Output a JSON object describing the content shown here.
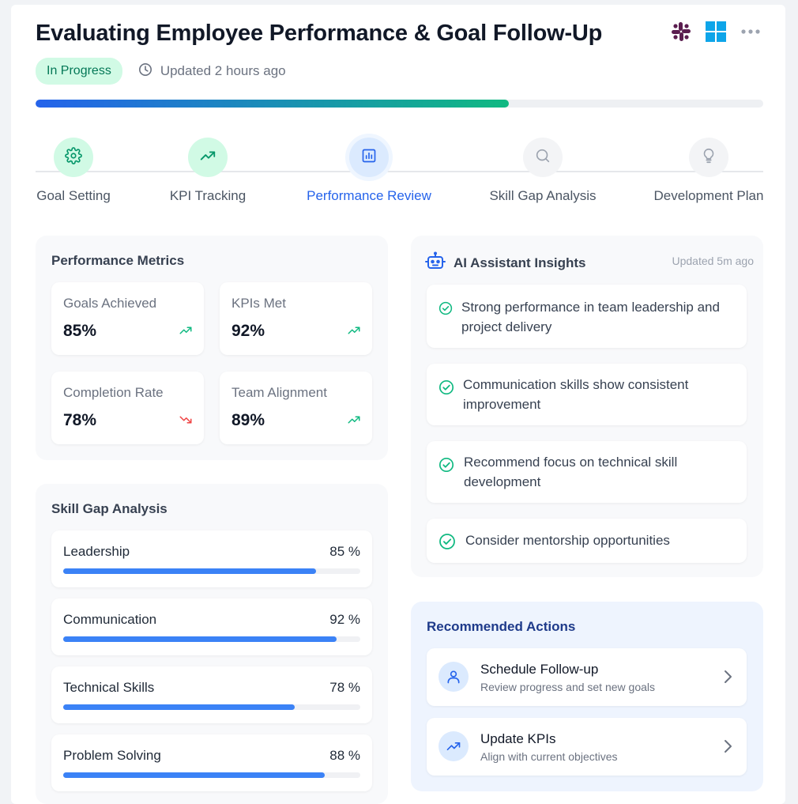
{
  "header": {
    "title": "Evaluating Employee Performance & Goal Follow-Up",
    "status_badge": "In Progress",
    "updated": "Updated 2 hours ago",
    "icons": [
      "slack-icon",
      "windows-icon",
      "more-options-icon"
    ]
  },
  "progress": {
    "fraction": 0.65,
    "colors": [
      "#2563eb",
      "#10b981"
    ]
  },
  "steps": [
    {
      "label": "Goal Setting",
      "icon": "gear-icon",
      "state": "done"
    },
    {
      "label": "KPI Tracking",
      "icon": "trending-up-icon",
      "state": "done"
    },
    {
      "label": "Performance Review",
      "icon": "bar-chart-icon",
      "state": "active"
    },
    {
      "label": "Skill Gap Analysis",
      "icon": "search-icon",
      "state": "pending"
    },
    {
      "label": "Development Plan",
      "icon": "lightbulb-icon",
      "state": "pending"
    }
  ],
  "metrics": {
    "title": "Performance Metrics",
    "items": [
      {
        "label": "Goals Achieved",
        "value": "85%",
        "trend": "up"
      },
      {
        "label": "KPIs Met",
        "value": "92%",
        "trend": "up"
      },
      {
        "label": "Completion Rate",
        "value": "78%",
        "trend": "down"
      },
      {
        "label": "Team Alignment",
        "value": "89%",
        "trend": "up"
      }
    ]
  },
  "skills": {
    "title": "Skill Gap Analysis",
    "items": [
      {
        "name": "Leadership",
        "pct_label": "85 %",
        "value": 0.85
      },
      {
        "name": "Communication",
        "pct_label": "92 %",
        "value": 0.92
      },
      {
        "name": "Technical Skills",
        "pct_label": "78 %",
        "value": 0.78
      },
      {
        "name": "Problem Solving",
        "pct_label": "88 %",
        "value": 0.88
      }
    ]
  },
  "ai": {
    "title": "AI Assistant Insights",
    "updated": "Updated 5m ago",
    "insights": [
      "Strong performance in team leadership and project delivery",
      "Communication skills show consistent improvement",
      "Recommend focus on technical skill development",
      "Consider mentorship opportunities"
    ]
  },
  "actions": {
    "title": "Recommended Actions",
    "items": [
      {
        "title": "Schedule Follow-up",
        "subtitle": "Review progress and set new goals",
        "icon": "user-icon"
      },
      {
        "title": "Update KPIs",
        "subtitle": "Align with current objectives",
        "icon": "trending-up-icon"
      }
    ]
  },
  "colors": {
    "accent": "#2563eb",
    "success": "#10b981",
    "danger": "#ef4444"
  }
}
